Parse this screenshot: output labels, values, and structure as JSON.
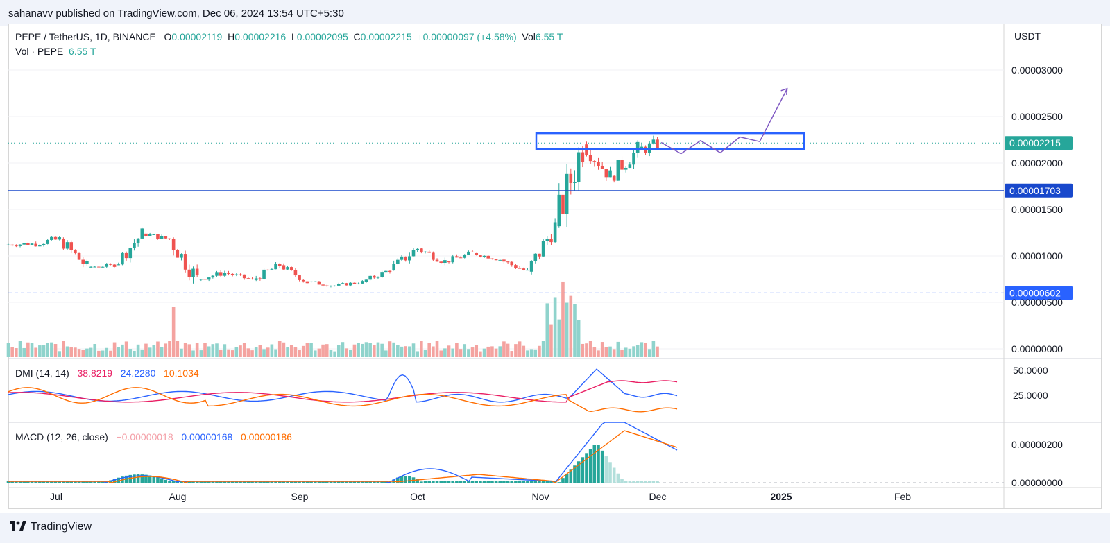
{
  "header": {
    "publisher": "sahanavv published on TradingView.com, Dec 06, 2024 13:54 UTC+5:30"
  },
  "footer": {
    "brand": "TradingView",
    "logo": "tradingview-logo-icon"
  },
  "legend": {
    "symbol": "PEPE / TetherUS, 1D, BINANCE",
    "o_label": "O",
    "o": "0.00002119",
    "h_label": "H",
    "h": "0.00002216",
    "l_label": "L",
    "l": "0.00002095",
    "c_label": "C",
    "c": "0.00002215",
    "change": "+0.00000097 (+4.58%)",
    "vol_label": "Vol",
    "vol": "6.55 T",
    "vol_series_label": "Vol · PEPE",
    "vol_series_value": "6.55 T"
  },
  "dmi_legend": {
    "label": "DMI (14, 14)",
    "v1": "38.8219",
    "v2": "24.2280",
    "v3": "10.1034"
  },
  "macd_legend": {
    "label": "MACD (12, 26, close)",
    "hist": "−0.00000018",
    "macd": "0.00000168",
    "signal": "0.00000186"
  },
  "colors": {
    "up": "#26a69a",
    "down": "#ef5350",
    "level": "#1848cc",
    "box": "#2962ff",
    "path": "#7e57c2",
    "dmi_plus": "#2962ff",
    "dmi_minus": "#e91e63",
    "adx": "#ff6d00"
  },
  "chart_data": [
    {
      "type": "candlestick",
      "title": "PEPE / TetherUS, 1D, BINANCE",
      "currency": "USDT",
      "ylim": [
        0,
        3e-05
      ],
      "y_ticks": [
        "0.00003000",
        "0.00002500",
        "0.00002000",
        "0.00001500",
        "0.00001000",
        "0.00000500",
        "0.00000000"
      ],
      "x_ticks": [
        "Jul",
        "Aug",
        "Sep",
        "Oct",
        "Nov",
        "Dec",
        "2025",
        "Feb"
      ],
      "last_price": "0.00002215",
      "price_labels": [
        "0.00002215",
        "0.00001703",
        "0.00000602"
      ],
      "horizontal_levels": [
        1.703e-05,
        6.02e-06
      ],
      "resistance_zone": [
        2.15e-05,
        2.32e-05
      ],
      "projection": [
        [
          "2024-12-07",
          2.22e-05
        ],
        [
          "2024-12-12",
          2.1e-05
        ],
        [
          "2024-12-17",
          2.24e-05
        ],
        [
          "2024-12-22",
          2.11e-05
        ],
        [
          "2024-12-27",
          2.28e-05
        ],
        [
          "2025-01-01",
          2.23e-05
        ],
        [
          "2025-01-08",
          2.8e-05
        ]
      ],
      "ohlc_weekly": [
        [
          "2024-06-24",
          1.12e-05,
          1.18e-05,
          1.05e-05,
          1.13e-05
        ],
        [
          "2024-07-01",
          1.13e-05,
          1.32e-05,
          1.1e-05,
          1.18e-05
        ],
        [
          "2024-07-08",
          1.18e-05,
          1.2e-05,
          8e-06,
          8.8e-06
        ],
        [
          "2024-07-15",
          8.8e-06,
          9.5e-06,
          8.4e-06,
          9e-06
        ],
        [
          "2024-07-22",
          9e-06,
          1.3e-05,
          9e-06,
          1.24e-05
        ],
        [
          "2024-07-29",
          1.24e-05,
          1.3e-05,
          1.15e-05,
          1.18e-05
        ],
        [
          "2024-08-05",
          1.18e-05,
          1.2e-05,
          6e-06,
          7.5e-06
        ],
        [
          "2024-08-12",
          7.5e-06,
          9e-06,
          7.2e-06,
          8.2e-06
        ],
        [
          "2024-08-19",
          8.2e-06,
          8.5e-06,
          7e-06,
          7.4e-06
        ],
        [
          "2024-08-26",
          7.4e-06,
          9.8e-06,
          7.3e-06,
          9e-06
        ],
        [
          "2024-09-02",
          9e-06,
          9.2e-06,
          7e-06,
          7.2e-06
        ],
        [
          "2024-09-09",
          7.2e-06,
          7.8e-06,
          6.6e-06,
          6.8e-06
        ],
        [
          "2024-09-16",
          6.8e-06,
          7.6e-06,
          6.6e-06,
          7.2e-06
        ],
        [
          "2024-09-23",
          7.2e-06,
          8.8e-06,
          7.1e-06,
          8.5e-06
        ],
        [
          "2024-09-30",
          8.5e-06,
          1.17e-05,
          8.4e-06,
          1.08e-05
        ],
        [
          "2024-10-07",
          1.08e-05,
          1.12e-05,
          8.8e-06,
          9.4e-06
        ],
        [
          "2024-10-14",
          9.4e-06,
          1.1e-05,
          9.2e-06,
          1.03e-05
        ],
        [
          "2024-10-21",
          1.03e-05,
          1.06e-05,
          9.4e-06,
          9.6e-06
        ],
        [
          "2024-10-28",
          9.6e-06,
          1e-05,
          8e-06,
          8.3e-06
        ],
        [
          "2024-11-04",
          8.3e-06,
          1.4e-05,
          8e-06,
          1.32e-05
        ],
        [
          "2024-11-11",
          1.32e-05,
          2.6e-05,
          1.3e-05,
          2.2e-05
        ],
        [
          "2024-11-18",
          2.2e-05,
          2.25e-05,
          1.78e-05,
          1.86e-05
        ],
        [
          "2024-11-25",
          1.86e-05,
          2.32e-05,
          1.78e-05,
          2.14e-05
        ],
        [
          "2024-12-02",
          2.14e-05,
          2.3e-05,
          1.9e-05,
          2.22e-05
        ]
      ]
    },
    {
      "type": "line",
      "title": "DMI (14, 14)",
      "y_ticks": [
        "50.0000",
        "25.0000"
      ],
      "series": [
        {
          "name": "",
          "color": "#2962ff",
          "last": 24.228
        },
        {
          "name": "",
          "color": "#e91e63",
          "last": 38.8219
        },
        {
          "name": "",
          "color": "#ff6d00",
          "last": 10.1034
        }
      ]
    },
    {
      "type": "line",
      "title": "MACD (12, 26, close)",
      "y_ticks": [
        "0.00000200",
        "0.00000000"
      ],
      "series": [
        {
          "name": "",
          "color": "#2962ff",
          "last": 1.68e-06
        },
        {
          "name": "",
          "color": "#ff6d00",
          "last": 1.86e-06
        }
      ],
      "histogram_last": -1.8e-07
    }
  ]
}
